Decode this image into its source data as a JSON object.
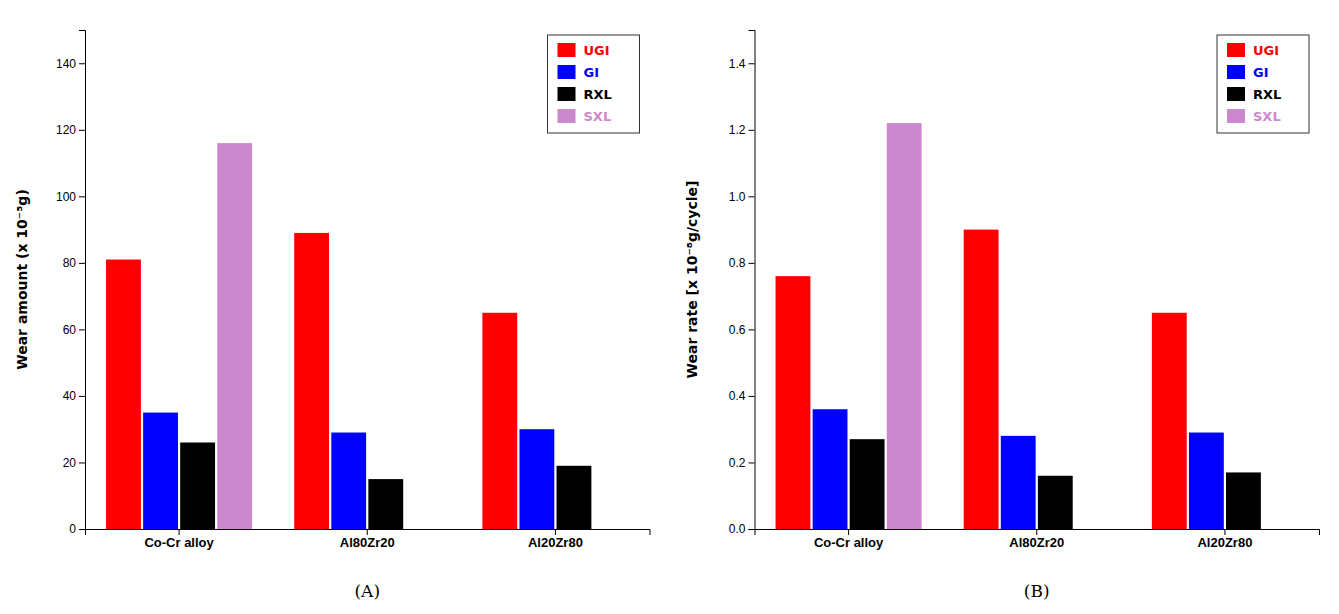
{
  "chart_data": [
    {
      "type": "bar",
      "title": "(A)",
      "ylabel": "Wear amount (x 10⁻⁵g)",
      "categories": [
        "Co-Cr alloy",
        "Al80Zr20",
        "Al20Zr80"
      ],
      "series": [
        {
          "name": "UGI",
          "color": "#ff0000",
          "values": [
            81,
            89,
            65
          ]
        },
        {
          "name": "GI",
          "color": "#0000ff",
          "values": [
            35,
            29,
            30
          ]
        },
        {
          "name": "RXL",
          "color": "#000000",
          "values": [
            26,
            15,
            19
          ]
        },
        {
          "name": "SXL",
          "color": "#cc88cc",
          "values": [
            116,
            0,
            0
          ]
        }
      ],
      "ylim": [
        0,
        150
      ],
      "yticks": [
        0,
        20,
        40,
        60,
        80,
        100,
        120,
        140
      ],
      "grid": false,
      "legend": "upper right"
    },
    {
      "type": "bar",
      "title": "(B)",
      "ylabel": "Wear rate [x 10⁻⁸g/cycle]",
      "categories": [
        "Co-Cr alloy",
        "Al80Zr20",
        "Al20Zr80"
      ],
      "series": [
        {
          "name": "UGI",
          "color": "#ff0000",
          "values": [
            0.76,
            0.9,
            0.65
          ]
        },
        {
          "name": "GI",
          "color": "#0000ff",
          "values": [
            0.36,
            0.28,
            0.29
          ]
        },
        {
          "name": "RXL",
          "color": "#000000",
          "values": [
            0.27,
            0.16,
            0.17
          ]
        },
        {
          "name": "SXL",
          "color": "#cc88cc",
          "values": [
            1.22,
            0,
            0
          ]
        }
      ],
      "ylim": [
        0,
        1.5
      ],
      "yticks": [
        {
          "value": 0,
          "label": "0.0"
        },
        0.2,
        0.4,
        0.6,
        0.8,
        {
          "value": 1.0,
          "label": "1.0"
        },
        1.2,
        1.4
      ],
      "grid": false,
      "legend": "upper right"
    }
  ]
}
